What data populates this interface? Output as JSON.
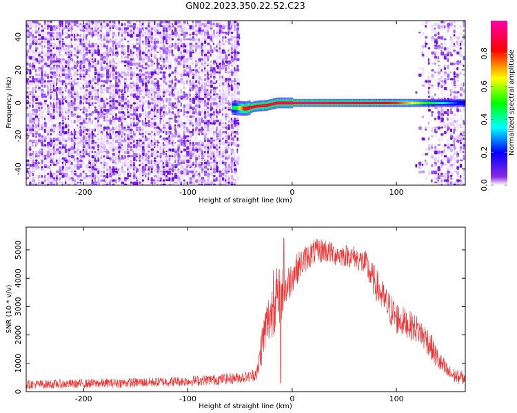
{
  "title": "GN02.2023.350.22.52.C23",
  "chart_data": [
    {
      "type": "heatmap",
      "xlabel": "Height of straight line (km)",
      "ylabel": "Frequency (Hz)",
      "xlim": [
        -255,
        166
      ],
      "ylim": [
        -50,
        50
      ],
      "xticks": [
        -200,
        -100,
        0,
        100
      ],
      "yticks": [
        40,
        20,
        0,
        -20,
        -40
      ],
      "grid": false,
      "colorbar": {
        "label": "Normalized spectral amplitude",
        "ticks": [
          "0.0",
          "0.2",
          "0.4",
          "0.6",
          "0.8"
        ],
        "range": [
          0,
          1
        ],
        "colors": [
          "#ffffff",
          "#7f00ff",
          "#0000ff",
          "#00ffff",
          "#00ff00",
          "#ffff00",
          "#ff0000",
          "#ff00aa"
        ]
      },
      "noise_regions": [
        {
          "x_from": -255,
          "x_to": -53,
          "density": "high"
        },
        {
          "x_from": 115,
          "x_to": 166,
          "density": "medium"
        }
      ],
      "signal_band": {
        "x_from": -58,
        "x_to": 166,
        "center_freq": 0,
        "points": [
          {
            "x": -55,
            "freq": -3,
            "amp": 0.45
          },
          {
            "x": -45,
            "freq": -3.5,
            "amp": 0.9
          },
          {
            "x": -35,
            "freq": -2,
            "amp": 0.85
          },
          {
            "x": -25,
            "freq": -1.5,
            "amp": 0.88
          },
          {
            "x": -15,
            "freq": 0,
            "amp": 0.9
          },
          {
            "x": 0,
            "freq": 0,
            "amp": 0.95
          },
          {
            "x": 50,
            "freq": 0,
            "amp": 0.9
          },
          {
            "x": 100,
            "freq": 0,
            "amp": 0.8
          },
          {
            "x": 130,
            "freq": 0,
            "amp": 0.5
          },
          {
            "x": 160,
            "freq": 0,
            "amp": 0.2
          }
        ]
      }
    },
    {
      "type": "line",
      "xlabel": "Height of straight line (km)",
      "ylabel": "SNR (10 * v/v)",
      "xlim": [
        -255,
        166
      ],
      "ylim": [
        0,
        5800
      ],
      "xticks": [
        -200,
        -100,
        0,
        100
      ],
      "yticks": [
        0,
        1000,
        2000,
        3000,
        4000,
        5000
      ],
      "grid": false,
      "color": "#ee3333",
      "series": [
        {
          "x": [
            -255,
            -200,
            -150,
            -100,
            -60,
            -40,
            -33,
            -30,
            -25,
            -20,
            -15,
            -10,
            -5,
            0,
            10,
            20,
            30,
            40,
            50,
            60,
            70,
            80,
            90,
            100,
            110,
            120,
            130,
            140,
            150,
            160,
            166
          ],
          "y": [
            250,
            280,
            320,
            370,
            460,
            530,
            700,
            1500,
            2300,
            2800,
            3300,
            3400,
            3700,
            4100,
            4600,
            4900,
            5000,
            4850,
            4800,
            4750,
            4500,
            3800,
            3100,
            2600,
            2400,
            2200,
            1800,
            1100,
            650,
            500,
            500
          ],
          "spread": [
            160,
            160,
            170,
            180,
            200,
            200,
            300,
            700,
            900,
            1000,
            1100,
            1000,
            700,
            600,
            500,
            450,
            450,
            400,
            400,
            400,
            500,
            600,
            600,
            600,
            500,
            500,
            500,
            400,
            300,
            250,
            250
          ],
          "spikes": [
            {
              "x": -8,
              "y": 5400
            },
            {
              "x": -13,
              "y": 2900
            },
            {
              "x": -18,
              "y": 4300
            },
            {
              "x": -11,
              "y": 300
            }
          ]
        }
      ]
    }
  ]
}
